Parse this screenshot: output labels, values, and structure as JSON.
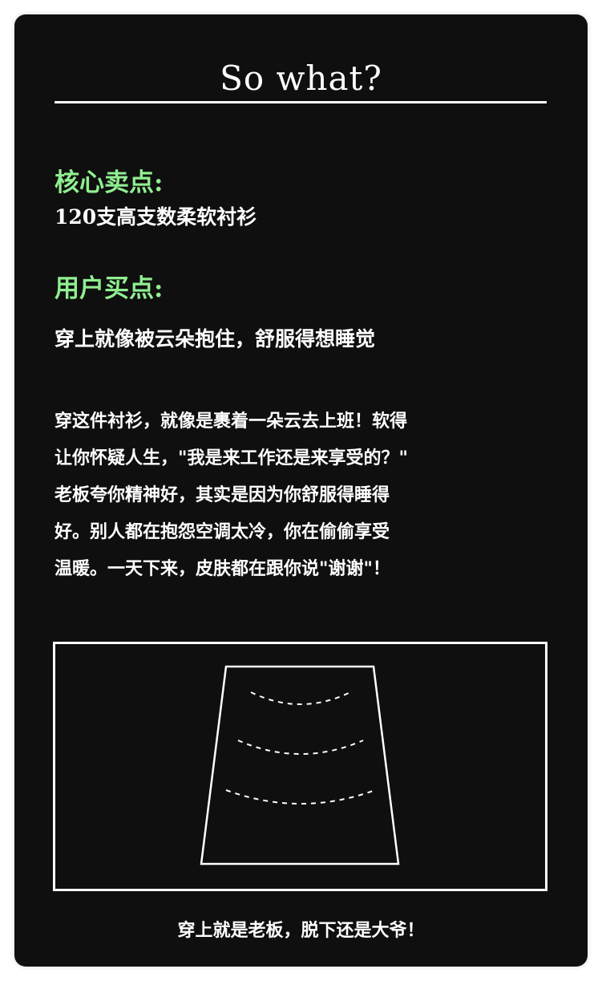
{
  "title": "So what?",
  "core_selling_point": {
    "heading": "核心卖点:",
    "text": "120支高支数柔软衬衫"
  },
  "user_buying_point": {
    "heading": "用户买点:",
    "text": "穿上就像被云朵抱住，舒服得想睡觉"
  },
  "paragraph_lines": [
    "穿这件衬衫，就像是裹着一朵云去上班！软得",
    "让你怀疑人生，\"我是来工作还是来享受的？\"",
    "老板夸你精神好，其实是因为你舒服得睡得",
    "好。别人都在抱怨空调太冷，你在偷偷享受",
    "温暖。一天下来，皮肤都在跟你说\"谢谢\"！"
  ],
  "caption": "穿上就是老板，脱下还是大爷！",
  "colors": {
    "background": "#0f0f0f",
    "text": "#ffffff",
    "heading_accent": "#90ee90"
  }
}
